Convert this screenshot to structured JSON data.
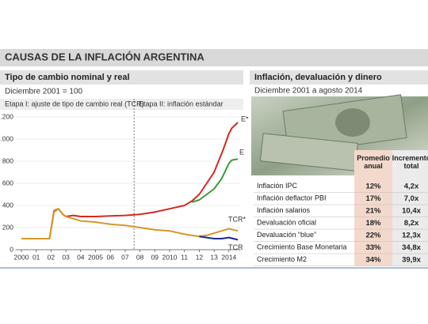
{
  "header": {
    "title": "CAUSAS DE LA INFLACIÓN ARGENTINA"
  },
  "chart_data": {
    "type": "line",
    "title": "Tipo de cambio nominal y real",
    "subtitle": "Diciembre 2001 = 100",
    "annotations": [
      "Etapa I: ajuste de tipo de cambio real (TCR)",
      "Etapa II: inflación estándar"
    ],
    "phase_break": 2007.6,
    "xlim": [
      1999.6,
      2014.8
    ],
    "xticks": [
      2000,
      {
        "value": 2001,
        "label": "01"
      },
      {
        "value": 2002,
        "label": "02"
      },
      {
        "value": 2003,
        "label": "03"
      },
      {
        "value": 2004,
        "label": "04"
      },
      2005,
      {
        "value": 2006,
        "label": "06"
      },
      {
        "value": 2007,
        "label": "07"
      },
      {
        "value": 2008,
        "label": "08"
      },
      {
        "value": 2009,
        "label": "09"
      },
      2010,
      {
        "value": 2011,
        "label": "11"
      },
      {
        "value": 2012,
        "label": "12"
      },
      {
        "value": 2013,
        "label": "13"
      },
      2014
    ],
    "ylim": [
      0,
      1200
    ],
    "yticks": [
      0,
      200,
      400,
      600,
      800,
      {
        "value": 1000,
        "label": "1.000"
      },
      {
        "value": 1200,
        "label": "1.200"
      }
    ],
    "series": [
      {
        "name": "E*",
        "color": "#d42a1e",
        "x": [
          2000,
          2001.9,
          2002.2,
          2002.5,
          2002.8,
          2003,
          2003.5,
          2004,
          2005,
          2006,
          2007,
          2008,
          2009,
          2010,
          2011,
          2011.5,
          2012,
          2012.5,
          2013,
          2013.3,
          2013.6,
          2014,
          2014.2,
          2014.6
        ],
        "values": [
          100,
          100,
          350,
          370,
          320,
          300,
          310,
          300,
          300,
          305,
          310,
          320,
          340,
          370,
          400,
          440,
          500,
          600,
          700,
          800,
          900,
          1050,
          1100,
          1150
        ]
      },
      {
        "name": "E",
        "color": "#3a9a3a",
        "x": [
          2011.5,
          2012,
          2012.5,
          2013,
          2013.5,
          2014,
          2014.2,
          2014.6
        ],
        "values": [
          430,
          450,
          500,
          550,
          640,
          780,
          810,
          820
        ]
      },
      {
        "name": "TCR*",
        "color": "#d4982a",
        "x": [
          2000,
          2001.9,
          2002.2,
          2002.5,
          2002.8,
          2003,
          2004,
          2005,
          2006,
          2007,
          2008,
          2009,
          2010,
          2011,
          2012,
          2012.5,
          2013,
          2013.5,
          2014,
          2014.3,
          2014.6
        ],
        "values": [
          100,
          100,
          340,
          370,
          320,
          300,
          260,
          250,
          230,
          220,
          200,
          180,
          170,
          140,
          120,
          130,
          150,
          170,
          190,
          180,
          170
        ]
      },
      {
        "name": "TCR",
        "color": "#1a2a8a",
        "x": [
          2012,
          2012.5,
          2013,
          2013.5,
          2014,
          2014.3,
          2014.6
        ],
        "values": [
          120,
          110,
          100,
          100,
          110,
          100,
          90
        ]
      }
    ]
  },
  "table": {
    "title": "Inflación, devaluación y dinero",
    "subtitle": "Diciembre 2001 a agosto 2014",
    "columns": [
      "Promedio anual",
      "Incremento total"
    ],
    "rows": [
      [
        "Inflación IPC",
        "12%",
        "4,2x"
      ],
      [
        "Inflación deflactor PBI",
        "17%",
        "7,0x"
      ],
      [
        "Inflación salarios",
        "21%",
        "10,4x"
      ],
      [
        "Devaluación oficial",
        "18%",
        "8,2x"
      ],
      [
        "Devaluación “blue”",
        "22%",
        "12,3x"
      ],
      [
        "Crecimiento Base Monetaria",
        "33%",
        "34,8x"
      ],
      [
        "Crecimiento M2",
        "34%",
        "39,9x"
      ]
    ]
  }
}
